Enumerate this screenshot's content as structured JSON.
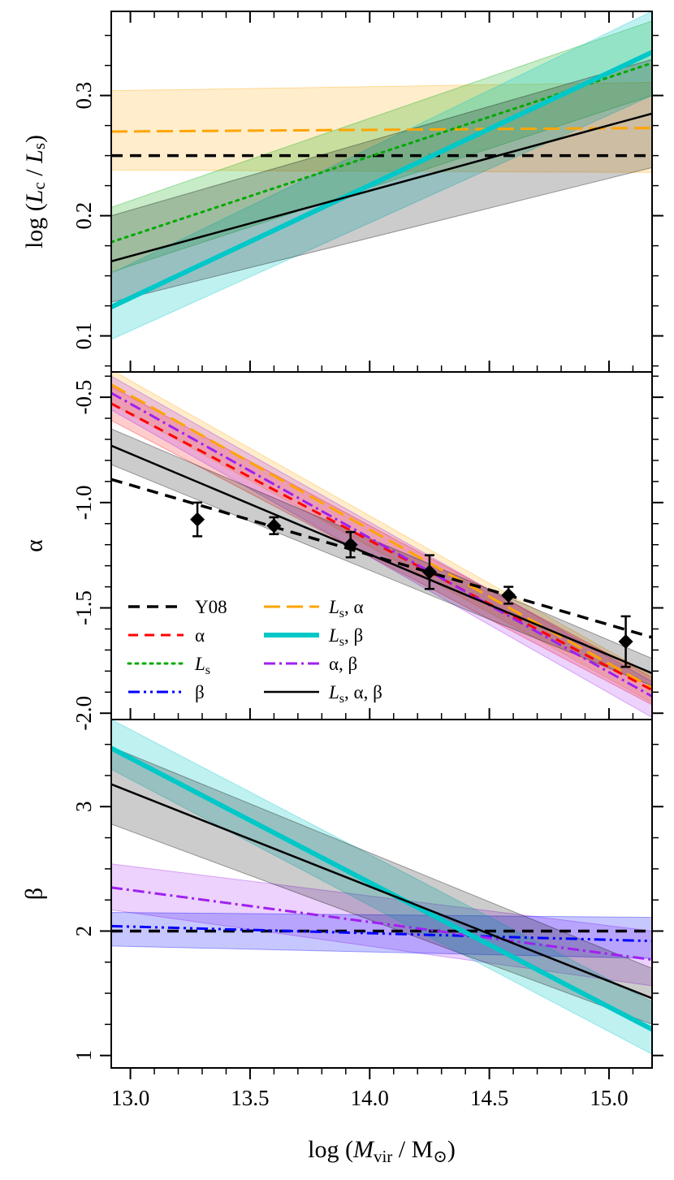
{
  "colors": {
    "Y08": "#000000",
    "alpha": "#ff0000",
    "Ls": "#00aa00",
    "beta": "#0000ff",
    "Ls_alpha": "#ffa500",
    "Ls_beta": "#00c8c8",
    "alpha_beta": "#a020f0",
    "Ls_alpha_beta": "#000000"
  },
  "chart_data": [
    {
      "type": "line",
      "panel": "top",
      "ylabel": {
        "prefix": "log (",
        "L1": "L",
        "sub1": "c",
        "mid": " / ",
        "L2": "L",
        "sub2": "s",
        "suffix": ")"
      },
      "xlim": [
        12.92,
        15.18
      ],
      "ylim": [
        0.07,
        0.37
      ],
      "yticks": [
        0.1,
        0.2,
        0.3
      ],
      "ytick_labels": [
        "0.1",
        "0.2",
        "0.3"
      ],
      "yminor": [
        0.075,
        0.1,
        0.125,
        0.15,
        0.175,
        0.2,
        0.225,
        0.25,
        0.275,
        0.3,
        0.325,
        0.35
      ],
      "bands": [
        {
          "series": "Ls_alpha",
          "x": [
            12.92,
            15.18
          ],
          "lower": [
            0.238,
            0.236
          ],
          "upper": [
            0.304,
            0.311
          ]
        },
        {
          "series": "Ls",
          "x": [
            12.92,
            15.18
          ],
          "lower": [
            0.153,
            0.3
          ],
          "upper": [
            0.207,
            0.362
          ]
        },
        {
          "series": "Ls_beta",
          "x": [
            12.92,
            15.18
          ],
          "lower": [
            0.097,
            0.3
          ],
          "upper": [
            0.152,
            0.37
          ]
        },
        {
          "series": "Ls_alpha_beta",
          "x": [
            12.92,
            15.18
          ],
          "lower": [
            0.128,
            0.24
          ],
          "upper": [
            0.2,
            0.33
          ]
        }
      ],
      "series": [
        {
          "name": "Y08",
          "x": [
            12.92,
            15.18
          ],
          "y": [
            0.25,
            0.25
          ]
        },
        {
          "name": "Ls_alpha",
          "x": [
            12.92,
            15.18
          ],
          "y": [
            0.27,
            0.273
          ]
        },
        {
          "name": "Ls",
          "x": [
            12.92,
            15.18
          ],
          "y": [
            0.178,
            0.327
          ]
        },
        {
          "name": "Ls_beta",
          "x": [
            12.92,
            15.18
          ],
          "y": [
            0.124,
            0.336
          ]
        },
        {
          "name": "Ls_alpha_beta",
          "x": [
            12.92,
            15.18
          ],
          "y": [
            0.162,
            0.285
          ]
        }
      ]
    },
    {
      "type": "line",
      "panel": "middle",
      "ylabel": {
        "text": "α"
      },
      "xlim": [
        12.92,
        15.18
      ],
      "ylim": [
        -2.03,
        -0.38
      ],
      "yticks": [
        -2.0,
        -1.5,
        -1.0,
        -0.5
      ],
      "ytick_labels": [
        "-2.0",
        "-1.5",
        "-1.0",
        "-0.5"
      ],
      "yminor": [
        -1.9,
        -1.8,
        -1.7,
        -1.6,
        -1.4,
        -1.3,
        -1.2,
        -1.1,
        -0.9,
        -0.8,
        -0.7,
        -0.6,
        -0.4
      ],
      "bands": [
        {
          "series": "Ls_alpha",
          "x": [
            12.92,
            15.18
          ],
          "lower": [
            -0.53,
            -1.95
          ],
          "upper": [
            -0.37,
            -1.82
          ]
        },
        {
          "series": "alpha",
          "x": [
            12.92,
            15.18
          ],
          "lower": [
            -0.61,
            -1.96
          ],
          "upper": [
            -0.45,
            -1.83
          ]
        },
        {
          "series": "alpha_beta",
          "x": [
            12.92,
            15.18
          ],
          "lower": [
            -0.56,
            -2.02
          ],
          "upper": [
            -0.4,
            -1.85
          ]
        },
        {
          "series": "Ls_alpha_beta",
          "x": [
            12.92,
            15.18
          ],
          "lower": [
            -0.82,
            -1.87
          ],
          "upper": [
            -0.65,
            -1.74
          ]
        }
      ],
      "series": [
        {
          "name": "Ls_alpha",
          "x": [
            12.92,
            15.18
          ],
          "y": [
            -0.44,
            -1.88
          ]
        },
        {
          "name": "alpha",
          "x": [
            12.92,
            15.18
          ],
          "y": [
            -0.53,
            -1.89
          ]
        },
        {
          "name": "alpha_beta",
          "x": [
            12.92,
            15.18
          ],
          "y": [
            -0.48,
            -1.92
          ]
        },
        {
          "name": "Ls_alpha_beta",
          "x": [
            12.92,
            15.18
          ],
          "y": [
            -0.73,
            -1.81
          ]
        },
        {
          "name": "Y08",
          "x": [
            12.92,
            15.18
          ],
          "y": [
            -0.89,
            -1.64
          ]
        }
      ],
      "points": {
        "name": "Y08 data",
        "x": [
          13.28,
          13.6,
          13.92,
          14.25,
          14.58,
          15.07
        ],
        "y": [
          -1.08,
          -1.11,
          -1.2,
          -1.33,
          -1.44,
          -1.66
        ],
        "err": [
          0.08,
          0.04,
          0.06,
          0.08,
          0.04,
          0.12
        ]
      }
    },
    {
      "type": "line",
      "panel": "bottom",
      "ylabel": {
        "text": "β"
      },
      "xlabel": {
        "prefix": "log (",
        "M": "M",
        "sub": "vir",
        "mid": " / M",
        "sun": "⊙",
        "suffix": ")"
      },
      "xlim": [
        12.92,
        15.18
      ],
      "ylim": [
        0.9,
        3.7
      ],
      "xticks": [
        13.0,
        13.5,
        14.0,
        14.5,
        15.0
      ],
      "xtick_labels": [
        "13.0",
        "13.5",
        "14.0",
        "14.5",
        "15.0"
      ],
      "xminor": [
        13.1,
        13.2,
        13.3,
        13.4,
        13.6,
        13.7,
        13.8,
        13.9,
        14.1,
        14.2,
        14.3,
        14.4,
        14.6,
        14.7,
        14.8,
        14.9,
        15.1
      ],
      "yticks": [
        1,
        2,
        3
      ],
      "ytick_labels": [
        "1",
        "2",
        "3"
      ],
      "yminor": [
        1.25,
        1.5,
        1.75,
        2.25,
        2.5,
        2.75,
        3.25,
        3.5
      ],
      "bands": [
        {
          "series": "alpha_beta",
          "x": [
            12.92,
            15.18
          ],
          "lower": [
            2.17,
            1.56
          ],
          "upper": [
            2.54,
            2.0
          ]
        },
        {
          "series": "beta",
          "x": [
            12.92,
            15.18
          ],
          "lower": [
            1.88,
            1.78
          ],
          "upper": [
            2.15,
            2.11
          ]
        },
        {
          "series": "Ls_beta",
          "x": [
            12.92,
            15.18
          ],
          "lower": [
            3.3,
            1.01
          ],
          "upper": [
            3.7,
            1.43
          ]
        },
        {
          "series": "Ls_alpha_beta",
          "x": [
            12.92,
            15.18
          ],
          "lower": [
            2.86,
            1.25
          ],
          "upper": [
            3.48,
            1.7
          ]
        }
      ],
      "series": [
        {
          "name": "Y08",
          "x": [
            12.92,
            15.18
          ],
          "y": [
            2.0,
            2.0
          ]
        },
        {
          "name": "beta",
          "x": [
            12.92,
            15.18
          ],
          "y": [
            2.04,
            1.92
          ]
        },
        {
          "name": "alpha_beta",
          "x": [
            12.92,
            15.18
          ],
          "y": [
            2.35,
            1.77
          ]
        },
        {
          "name": "Ls_beta",
          "x": [
            12.92,
            15.18
          ],
          "y": [
            3.47,
            1.21
          ]
        },
        {
          "name": "Ls_alpha_beta",
          "x": [
            12.92,
            15.18
          ],
          "y": [
            3.18,
            1.46
          ]
        }
      ]
    }
  ],
  "legend": {
    "placement": "middle panel, bottom-left",
    "entries": [
      {
        "series": "Y08",
        "label": "Y08"
      },
      {
        "series": "alpha",
        "label": "α"
      },
      {
        "series": "Ls",
        "label": "L",
        "sub": "s"
      },
      {
        "series": "beta",
        "label": "β"
      },
      {
        "series": "Ls_alpha",
        "label": "L",
        "sub": "s",
        "rest": ", α"
      },
      {
        "series": "Ls_beta",
        "label": "L",
        "sub": "s",
        "rest": ", β"
      },
      {
        "series": "alpha_beta",
        "label": "α, β"
      },
      {
        "series": "Ls_alpha_beta",
        "label": "L",
        "sub": "s",
        "rest": ", α, β"
      }
    ]
  }
}
